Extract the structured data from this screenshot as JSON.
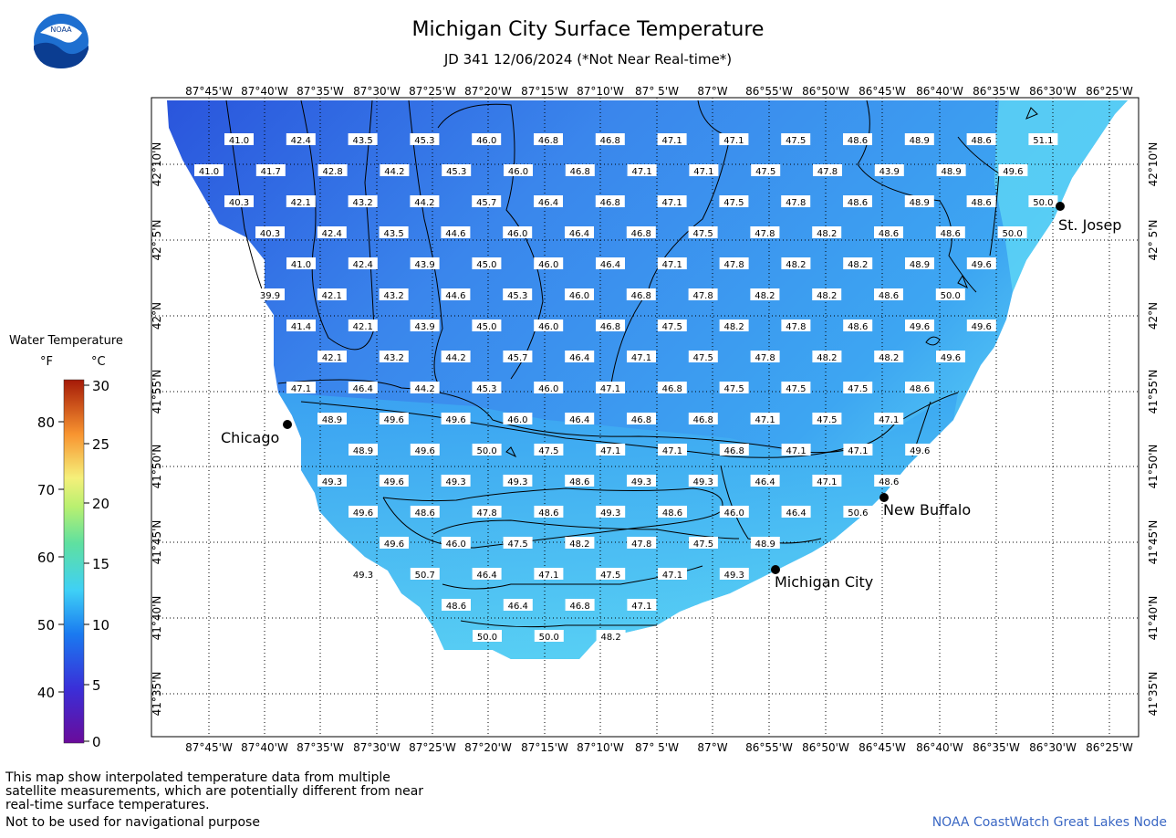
{
  "header": {
    "title": "Michigan City Surface Temperature",
    "subtitle": "JD 341 12/06/2024 (*Not Near Real-time*)"
  },
  "logo": {
    "text": "NOAA",
    "icon": "noaa-logo-icon"
  },
  "map": {
    "lon_labels": [
      "87°45'W",
      "87°40'W",
      "87°35'W",
      "87°30'W",
      "87°25'W",
      "87°20'W",
      "87°15'W",
      "87°10'W",
      "87° 5'W",
      "87°W",
      "86°55'W",
      "86°50'W",
      "86°45'W",
      "86°40'W",
      "86°35'W",
      "86°30'W",
      "86°25'W"
    ],
    "lat_labels": [
      "42°10'N",
      "42° 5'N",
      "42°N",
      "41°55'N",
      "41°50'N",
      "41°45'N",
      "41°40'N",
      "41°35'N"
    ],
    "cities": [
      {
        "name": "St. Josep",
        "key": "st-joseph"
      },
      {
        "name": "Chicago",
        "key": "chicago"
      },
      {
        "name": "New Buffalo",
        "key": "new-buffalo"
      },
      {
        "name": "Michigan City",
        "key": "michigan-city"
      }
    ],
    "water_colors": {
      "cold": "#2e5fe0",
      "mid": "#3aa0f2",
      "warm": "#5fd8f4"
    },
    "grid_values": [
      [
        "41.0",
        "42.4",
        "43.5",
        "45.3",
        "46.0",
        "46.8",
        "46.8",
        "47.1",
        "47.1",
        "47.5",
        "48.6",
        "48.9",
        "48.6",
        "51.1"
      ],
      [
        "41.0",
        "41.7",
        "42.8",
        "44.2",
        "45.3",
        "46.0",
        "46.8",
        "47.1",
        "47.1",
        "47.5",
        "47.8",
        "43.9",
        "48.9",
        "49.6"
      ],
      [
        "40.3",
        "42.1",
        "43.2",
        "44.2",
        "45.7",
        "46.4",
        "46.8",
        "47.1",
        "47.5",
        "47.8",
        "48.6",
        "48.9",
        "48.6",
        "50.0"
      ],
      [
        "40.3",
        "42.4",
        "43.5",
        "44.6",
        "46.0",
        "46.4",
        "46.8",
        "47.5",
        "47.8",
        "48.2",
        "48.6",
        "48.6",
        "50.0"
      ],
      [
        "41.0",
        "42.4",
        "43.9",
        "45.0",
        "46.0",
        "46.4",
        "47.1",
        "47.8",
        "48.2",
        "48.2",
        "48.9",
        "49.6"
      ],
      [
        "39.9",
        "42.1",
        "43.2",
        "44.6",
        "45.3",
        "46.0",
        "46.8",
        "47.8",
        "48.2",
        "48.2",
        "48.6",
        "50.0"
      ],
      [
        "41.4",
        "42.1",
        "43.9",
        "45.0",
        "46.0",
        "46.8",
        "47.5",
        "48.2",
        "47.8",
        "48.6",
        "49.6",
        "49.6"
      ],
      [
        "42.1",
        "43.2",
        "44.2",
        "45.7",
        "46.4",
        "47.1",
        "47.5",
        "47.8",
        "48.2",
        "48.2",
        "49.6"
      ],
      [
        "47.1",
        "46.4",
        "44.2",
        "45.3",
        "46.0",
        "47.1",
        "46.8",
        "47.5",
        "47.5",
        "47.5",
        "48.6"
      ],
      [
        "48.9",
        "49.6",
        "49.6",
        "46.0",
        "46.4",
        "46.8",
        "46.8",
        "47.1",
        "47.5",
        "47.1"
      ],
      [
        "48.9",
        "49.6",
        "50.0",
        "47.5",
        "47.1",
        "47.1",
        "46.8",
        "47.1",
        "47.1",
        "49.6"
      ],
      [
        "49.3",
        "49.6",
        "49.3",
        "49.3",
        "48.6",
        "49.3",
        "49.3",
        "46.4",
        "47.1",
        "48.6"
      ],
      [
        "49.6",
        "48.6",
        "47.8",
        "48.6",
        "49.3",
        "48.6",
        "46.0",
        "46.4",
        "50.6"
      ],
      [
        "49.6",
        "46.0",
        "47.5",
        "48.2",
        "47.8",
        "47.5",
        "48.9"
      ],
      [
        "49.3",
        "50.7",
        "46.4",
        "47.1",
        "47.5",
        "47.1",
        "49.3"
      ],
      [
        "48.6",
        "46.4",
        "46.8",
        "47.1"
      ],
      [
        "50.0",
        "50.0",
        "48.2"
      ]
    ]
  },
  "legend": {
    "title": "Water Temperature",
    "unit_f": "°F",
    "unit_c": "°C",
    "f_ticks": [
      "80",
      "70",
      "60",
      "50",
      "40"
    ],
    "c_ticks": [
      "30",
      "25",
      "20",
      "15",
      "10",
      "5",
      "0"
    ]
  },
  "footer": {
    "note": "This map show interpolated temperature data from multiple satellite measurements, which are potentially different from near real-time surface temperatures.",
    "nav": "Not to be used for navigational purpose",
    "credit": "NOAA CoastWatch Great Lakes Node"
  }
}
